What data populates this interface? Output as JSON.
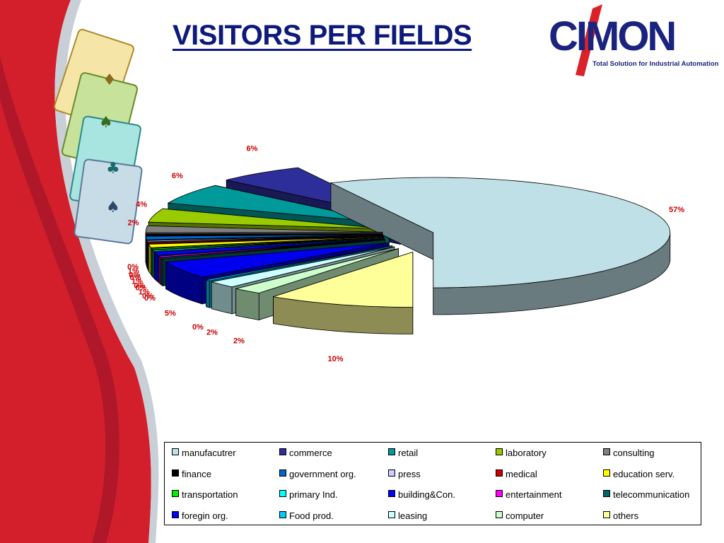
{
  "slide": {
    "title": "VISITORS PER FIELDS",
    "logo_text": "CIMON",
    "logo_subtitle": "Total Solution for Industrial Automation"
  },
  "chart_data": {
    "type": "pie",
    "style": "3d-exploded",
    "legend_position": "bottom",
    "categories": [
      "manufacutrer",
      "commerce",
      "retail",
      "laboratory",
      "consulting",
      "finance",
      "government org.",
      "press",
      "medical",
      "education serv.",
      "transportation",
      "primary Ind.",
      "building&Con.",
      "entertainment",
      "telecommunication",
      "foregin org.",
      "Food prod.",
      "leasing",
      "computer",
      "others"
    ],
    "values": [
      57,
      6,
      6,
      4,
      2,
      0,
      1,
      0,
      0,
      1,
      0,
      0,
      1,
      0,
      0,
      5,
      0,
      2,
      2,
      10
    ],
    "data_labels": [
      "57%",
      "6%",
      "6%",
      "4%",
      "2%",
      "0%",
      "1%",
      "0%",
      "0%",
      "1%",
      "0%",
      "0%",
      "1%",
      "0%",
      "0%",
      "5%",
      "0%",
      "2%",
      "2%",
      "10%"
    ],
    "colors": [
      "#bfe0e6",
      "#2e2e9a",
      "#009a9a",
      "#99cc00",
      "#808080",
      "#000000",
      "#0066cc",
      "#ccccff",
      "#cc0000",
      "#ffff00",
      "#00ee00",
      "#00ffff",
      "#0000ff",
      "#ff00ff",
      "#006666",
      "#0000ee",
      "#00ccff",
      "#ccffff",
      "#ccffcc",
      "#ffff99"
    ]
  }
}
